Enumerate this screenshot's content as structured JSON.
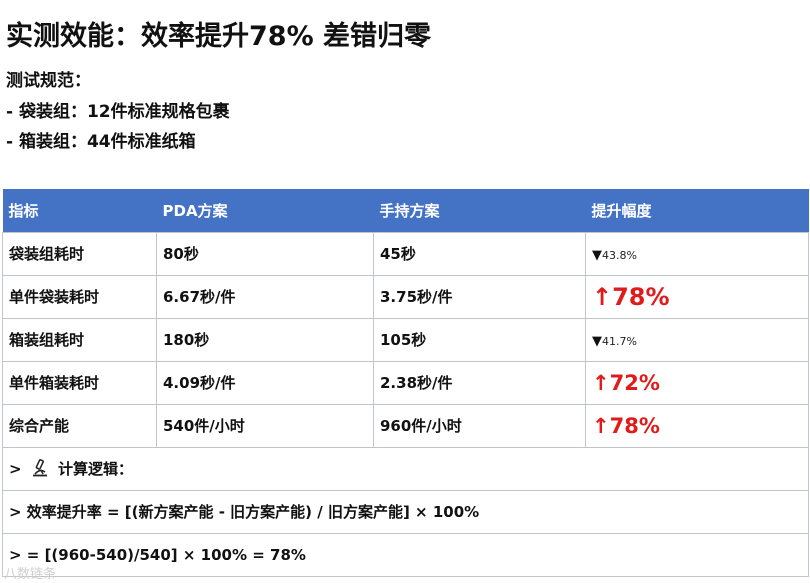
{
  "title": "实测效能：效率提升78% 差错归零",
  "spec": {
    "heading": "测试规范：",
    "items": [
      "- 袋装组：12件标准规格包裹",
      "- 箱装组：44件标准纸箱"
    ]
  },
  "table": {
    "headers": [
      "指标",
      "PDA方案",
      "手持方案",
      "提升幅度"
    ],
    "rows": [
      {
        "metric": "袋装组耗时",
        "pda": "80秒",
        "handheld": "45秒",
        "arrow": "▼",
        "improvement": "43.8%"
      },
      {
        "metric": "单件袋装耗时",
        "pda": "6.67秒/件",
        "handheld": "3.75秒/件",
        "arrow": "↑",
        "improvement": "78%"
      },
      {
        "metric": "箱装组耗时",
        "pda": "180秒",
        "handheld": "105秒",
        "arrow": "▼",
        "improvement": "41.7%"
      },
      {
        "metric": "单件箱装耗时",
        "pda": "4.09秒/件",
        "handheld": "2.38秒/件",
        "arrow": "↑",
        "improvement": "72%"
      },
      {
        "metric": "综合产能",
        "pda": "540件/小时",
        "handheld": "960件/小时",
        "arrow": "↑",
        "improvement": "78%"
      }
    ],
    "notes": [
      {
        "prefix": ">",
        "icon": "microscope-icon",
        "text": "计算逻辑："
      },
      {
        "text": "> 效率提升率 = [(新方案产能 - 旧方案产能) / 旧方案产能] × 100%"
      },
      {
        "text": "> = [(960-540)/540] × 100% = 78%"
      }
    ]
  },
  "watermark": "八数链条",
  "colors": {
    "header_bg": "#4472c4",
    "highlight_red": "#e01b1b"
  }
}
